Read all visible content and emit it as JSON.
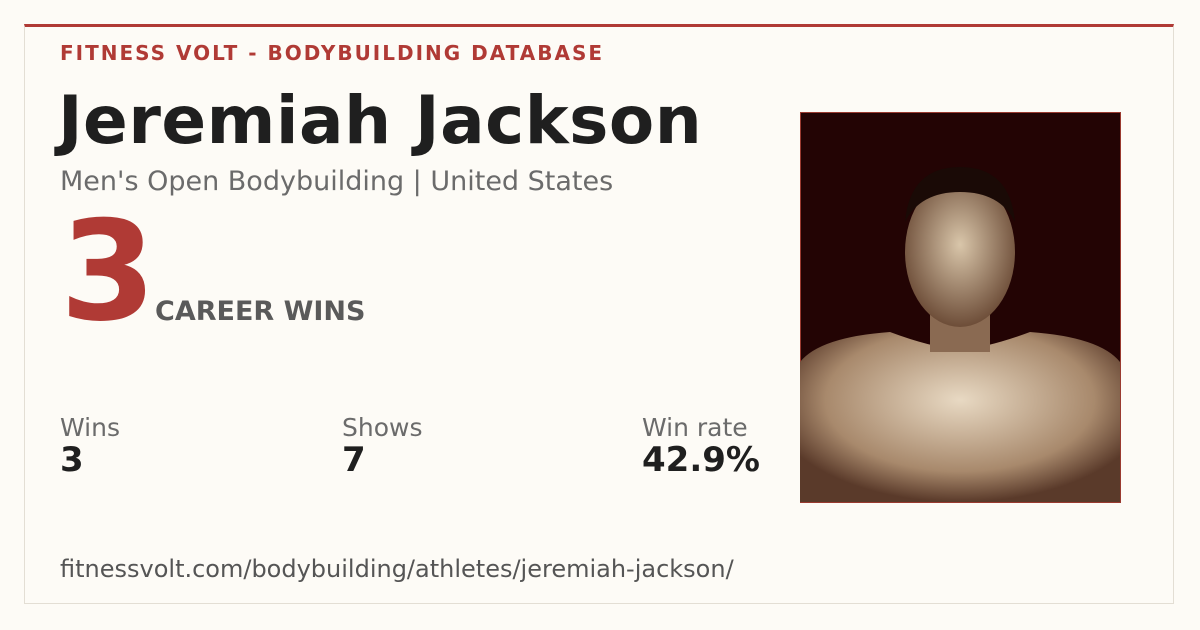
{
  "header": {
    "site": "FITNESS VOLT - BODYBUILDING DATABASE"
  },
  "athlete": {
    "name": "Jeremiah Jackson",
    "subtitle": "Men's Open Bodybuilding | United States"
  },
  "hero": {
    "value": "3",
    "label": "CAREER WINS"
  },
  "stats": [
    {
      "label": "Wins",
      "value": "3"
    },
    {
      "label": "Shows",
      "value": "7"
    },
    {
      "label": "Win rate",
      "value": "42.9%"
    }
  ],
  "footer": {
    "url": "fitnessvolt.com/bodybuilding/athletes/jeremiah-jackson/"
  }
}
